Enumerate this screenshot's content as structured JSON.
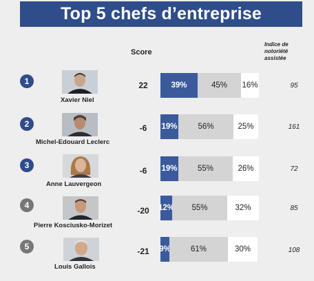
{
  "title": "Top 5 chefs d’entreprise",
  "headers": {
    "score": "Score",
    "index": "Indice de notoriété assistée"
  },
  "colors": {
    "positive": "#3a5a9b",
    "neutral": "#d4d4d4",
    "negative": "#ffffff",
    "title_bg": "#2f4d8a"
  },
  "chart_data": {
    "type": "bar",
    "stacked": true,
    "categories": [
      "Xavier Niel",
      "Michel-Edouard Leclerc",
      "Anne Lauvergeon",
      "Pierre Kosciusko-Morizet",
      "Louis Gallois"
    ],
    "series": [
      {
        "values": [
          39,
          19,
          19,
          12,
          9
        ]
      },
      {
        "values": [
          45,
          56,
          55,
          55,
          61
        ]
      },
      {
        "values": [
          16,
          25,
          26,
          32,
          30
        ]
      }
    ],
    "scores": [
      22,
      -6,
      -6,
      -20,
      -21
    ],
    "indices": [
      95,
      161,
      72,
      85,
      108
    ],
    "ranks": [
      "1",
      "2",
      "3",
      "4",
      "5"
    ]
  },
  "rows": [
    {
      "rank": "1",
      "name": "Xavier Niel",
      "score": "22",
      "pos": "39%",
      "mid": "45%",
      "neg": "16%",
      "index": "95"
    },
    {
      "rank": "2",
      "name": "Michel-Edouard Leclerc",
      "score": "-6",
      "pos": "19%",
      "mid": "56%",
      "neg": "25%",
      "index": "161"
    },
    {
      "rank": "3",
      "name": "Anne Lauvergeon",
      "score": "-6",
      "pos": "19%",
      "mid": "55%",
      "neg": "26%",
      "index": "72"
    },
    {
      "rank": "4",
      "name": "Pierre Kosciusko-Morizet",
      "score": "-20",
      "pos": "12%",
      "mid": "55%",
      "neg": "32%",
      "index": "85"
    },
    {
      "rank": "5",
      "name": "Louis Gallois",
      "score": "-21",
      "pos": "9%",
      "mid": "61%",
      "neg": "30%",
      "index": "108"
    }
  ]
}
